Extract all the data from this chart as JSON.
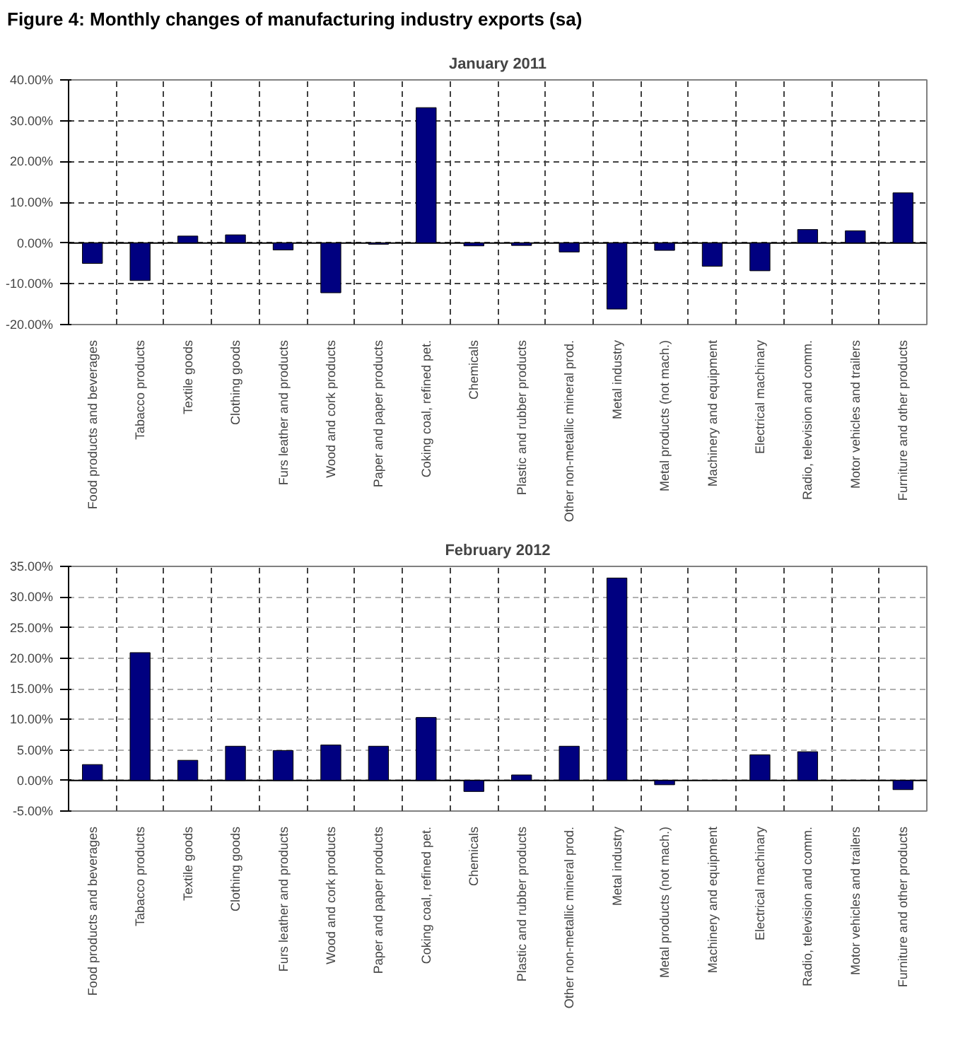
{
  "chart_data": [
    {
      "type": "bar",
      "title": "January 2011",
      "annotations": [
        "Figure 4: Monthly changes of manufacturing industry exports (sa)"
      ],
      "categories": [
        "Food products and beverages",
        "Tabacco products",
        "Textile goods",
        "Clothing goods",
        "Furs leather and products",
        "Wood and cork products",
        "Paper and paper products",
        "Coking coal, refined pet.",
        "Chemicals",
        "Plastic and rubber products",
        "Other non-metallic mineral prod.",
        "Metal industry",
        "Metal products (not mach.)",
        "Machinery and equipment",
        "Electrical machinary",
        "Radio, television and comm.",
        "Motor vehicles and trailers",
        "Furniture and other products"
      ],
      "series": [
        {
          "color": "#000080",
          "values": [
            -5.0,
            -9.2,
            1.7,
            2.0,
            -1.7,
            -12.2,
            -0.3,
            33.2,
            -0.7,
            -0.6,
            -2.2,
            -16.2,
            -1.8,
            -5.7,
            -6.8,
            3.3,
            3.0,
            12.3
          ]
        }
      ],
      "ylim": [
        -20,
        40
      ],
      "yticks": [
        {
          "value": -20,
          "label": "-20.00%"
        },
        {
          "value": -10,
          "label": "-10.00%"
        },
        {
          "value": 0,
          "label": "0.00%"
        },
        {
          "value": 10,
          "label": "10.00%"
        },
        {
          "value": 20,
          "label": "20.00%"
        },
        {
          "value": 30,
          "label": "30.00%"
        },
        {
          "value": 40,
          "label": "40.00%"
        }
      ],
      "grid": true
    },
    {
      "type": "bar",
      "title": "February 2012",
      "categories": [
        "Food products and beverages",
        "Tabacco products",
        "Textile goods",
        "Clothing goods",
        "Furs leather and products",
        "Wood and cork products",
        "Paper and paper products",
        "Coking coal, refined pet.",
        "Chemicals",
        "Plastic and rubber products",
        "Other non-metallic mineral prod.",
        "Metal industry",
        "Metal products (not mach.)",
        "Machinery and equipment",
        "Electrical machinary",
        "Radio, television and comm.",
        "Motor vehicles and trailers",
        "Furniture and other products"
      ],
      "series": [
        {
          "color": "#000080",
          "values": [
            2.6,
            20.9,
            3.3,
            5.6,
            4.9,
            5.8,
            5.6,
            10.3,
            -1.8,
            0.9,
            5.6,
            33.1,
            -0.7,
            null,
            4.2,
            4.7,
            null,
            -1.5
          ]
        }
      ],
      "ylim": [
        -5,
        35
      ],
      "yticks": [
        {
          "value": -5,
          "label": "-5.00%"
        },
        {
          "value": 0,
          "label": "0.00%"
        },
        {
          "value": 5,
          "label": "5.00%"
        },
        {
          "value": 10,
          "label": "10.00%"
        },
        {
          "value": 15,
          "label": "15.00%"
        },
        {
          "value": 20,
          "label": "20.00%"
        },
        {
          "value": 25,
          "label": "25.00%"
        },
        {
          "value": 30,
          "label": "30.00%"
        },
        {
          "value": 35,
          "label": "35.00%"
        }
      ],
      "grid": true
    }
  ]
}
